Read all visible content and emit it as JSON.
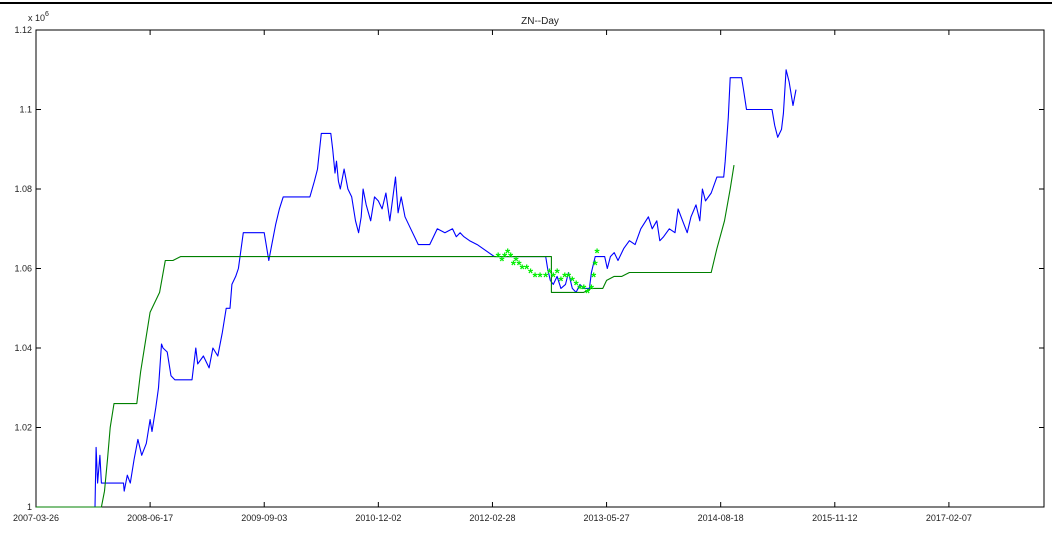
{
  "chart_data": {
    "type": "line",
    "title": "ZN--Day",
    "xlabel": "",
    "ylabel": "",
    "y_exponent_label": "x 10",
    "y_exponent_power": "6",
    "x_tick_labels": [
      "2007-03-26",
      "2008-06-17",
      "2009-09-03",
      "2010-12-02",
      "2012-02-28",
      "2013-05-27",
      "2014-08-18",
      "2015-11-12",
      "2017-02-07"
    ],
    "x_tick_index": [
      0,
      300,
      600,
      900,
      1200,
      1500,
      1800,
      2100,
      2400
    ],
    "xlim": [
      0,
      2650
    ],
    "y_tick_labels": [
      "1",
      "1.02",
      "1.04",
      "1.06",
      "1.08",
      "1.1",
      "1.12"
    ],
    "y_tick_values": [
      1.0,
      1.02,
      1.04,
      1.06,
      1.08,
      1.1,
      1.12
    ],
    "ylim": [
      1.0,
      1.12
    ],
    "grid": false,
    "series": [
      {
        "role": "equity",
        "color": "#0000ff",
        "points": [
          [
            155,
            1.0
          ],
          [
            158,
            1.015
          ],
          [
            162,
            1.006
          ],
          [
            168,
            1.013
          ],
          [
            172,
            1.006
          ],
          [
            230,
            1.006
          ],
          [
            232,
            1.004
          ],
          [
            240,
            1.008
          ],
          [
            248,
            1.006
          ],
          [
            258,
            1.012
          ],
          [
            268,
            1.017
          ],
          [
            278,
            1.013
          ],
          [
            290,
            1.016
          ],
          [
            300,
            1.022
          ],
          [
            305,
            1.019
          ],
          [
            315,
            1.025
          ],
          [
            322,
            1.03
          ],
          [
            330,
            1.041
          ],
          [
            334,
            1.04
          ],
          [
            345,
            1.039
          ],
          [
            355,
            1.033
          ],
          [
            365,
            1.032
          ],
          [
            410,
            1.032
          ],
          [
            420,
            1.04
          ],
          [
            425,
            1.036
          ],
          [
            440,
            1.038
          ],
          [
            455,
            1.035
          ],
          [
            465,
            1.04
          ],
          [
            478,
            1.038
          ],
          [
            490,
            1.044
          ],
          [
            500,
            1.05
          ],
          [
            510,
            1.05
          ],
          [
            515,
            1.056
          ],
          [
            525,
            1.058
          ],
          [
            532,
            1.06
          ],
          [
            545,
            1.069
          ],
          [
            600,
            1.069
          ],
          [
            612,
            1.062
          ],
          [
            620,
            1.066
          ],
          [
            630,
            1.071
          ],
          [
            640,
            1.075
          ],
          [
            650,
            1.078
          ],
          [
            720,
            1.078
          ],
          [
            732,
            1.082
          ],
          [
            740,
            1.085
          ],
          [
            750,
            1.094
          ],
          [
            775,
            1.094
          ],
          [
            780,
            1.09
          ],
          [
            786,
            1.084
          ],
          [
            790,
            1.087
          ],
          [
            795,
            1.082
          ],
          [
            800,
            1.08
          ],
          [
            810,
            1.085
          ],
          [
            820,
            1.08
          ],
          [
            830,
            1.078
          ],
          [
            840,
            1.072
          ],
          [
            848,
            1.069
          ],
          [
            855,
            1.073
          ],
          [
            860,
            1.08
          ],
          [
            868,
            1.076
          ],
          [
            880,
            1.072
          ],
          [
            890,
            1.078
          ],
          [
            900,
            1.077
          ],
          [
            910,
            1.075
          ],
          [
            920,
            1.079
          ],
          [
            930,
            1.072
          ],
          [
            945,
            1.083
          ],
          [
            952,
            1.074
          ],
          [
            960,
            1.078
          ],
          [
            970,
            1.073
          ],
          [
            985,
            1.07
          ],
          [
            1005,
            1.066
          ],
          [
            1035,
            1.066
          ],
          [
            1045,
            1.068
          ],
          [
            1055,
            1.07
          ],
          [
            1075,
            1.069
          ],
          [
            1095,
            1.07
          ],
          [
            1105,
            1.068
          ],
          [
            1115,
            1.069
          ],
          [
            1125,
            1.068
          ],
          [
            1140,
            1.067
          ],
          [
            1160,
            1.066
          ],
          [
            1190,
            1.064
          ],
          [
            1205,
            1.063
          ],
          [
            1340,
            1.063
          ],
          [
            1345,
            1.06
          ],
          [
            1352,
            1.057
          ],
          [
            1360,
            1.056
          ],
          [
            1370,
            1.058
          ],
          [
            1380,
            1.055
          ],
          [
            1392,
            1.056
          ],
          [
            1400,
            1.059
          ],
          [
            1410,
            1.055
          ],
          [
            1420,
            1.054
          ],
          [
            1430,
            1.056
          ],
          [
            1440,
            1.055
          ],
          [
            1455,
            1.055
          ],
          [
            1460,
            1.059
          ],
          [
            1470,
            1.063
          ],
          [
            1495,
            1.063
          ],
          [
            1502,
            1.06
          ],
          [
            1510,
            1.063
          ],
          [
            1520,
            1.064
          ],
          [
            1530,
            1.062
          ],
          [
            1545,
            1.065
          ],
          [
            1560,
            1.067
          ],
          [
            1575,
            1.066
          ],
          [
            1590,
            1.07
          ],
          [
            1610,
            1.073
          ],
          [
            1620,
            1.07
          ],
          [
            1632,
            1.072
          ],
          [
            1640,
            1.067
          ],
          [
            1650,
            1.068
          ],
          [
            1665,
            1.07
          ],
          [
            1680,
            1.069
          ],
          [
            1688,
            1.075
          ],
          [
            1700,
            1.072
          ],
          [
            1712,
            1.069
          ],
          [
            1722,
            1.073
          ],
          [
            1735,
            1.076
          ],
          [
            1745,
            1.072
          ],
          [
            1752,
            1.08
          ],
          [
            1760,
            1.077
          ],
          [
            1775,
            1.079
          ],
          [
            1790,
            1.083
          ],
          [
            1808,
            1.083
          ],
          [
            1812,
            1.087
          ],
          [
            1820,
            1.098
          ],
          [
            1825,
            1.108
          ],
          [
            1855,
            1.108
          ],
          [
            1860,
            1.105
          ],
          [
            1868,
            1.1
          ],
          [
            1935,
            1.1
          ],
          [
            1942,
            1.096
          ],
          [
            1950,
            1.093
          ],
          [
            1960,
            1.095
          ],
          [
            1965,
            1.099
          ],
          [
            1972,
            1.11
          ],
          [
            1980,
            1.107
          ],
          [
            1990,
            1.101
          ],
          [
            1998,
            1.105
          ]
        ]
      },
      {
        "role": "trailing_stop",
        "color": "#008000",
        "points": [
          [
            0,
            1.0
          ],
          [
            172,
            1.0
          ],
          [
            180,
            1.004
          ],
          [
            188,
            1.012
          ],
          [
            195,
            1.02
          ],
          [
            205,
            1.026
          ],
          [
            265,
            1.026
          ],
          [
            275,
            1.034
          ],
          [
            285,
            1.04
          ],
          [
            300,
            1.049
          ],
          [
            325,
            1.054
          ],
          [
            340,
            1.062
          ],
          [
            345,
            1.062
          ],
          [
            360,
            1.062
          ],
          [
            380,
            1.063
          ],
          [
            1355,
            1.063
          ],
          [
            1355,
            1.054
          ],
          [
            1440,
            1.054
          ],
          [
            1460,
            1.055
          ],
          [
            1490,
            1.055
          ],
          [
            1500,
            1.057
          ],
          [
            1520,
            1.058
          ],
          [
            1540,
            1.058
          ],
          [
            1560,
            1.059
          ],
          [
            1620,
            1.059
          ],
          [
            1650,
            1.059
          ],
          [
            1700,
            1.059
          ],
          [
            1745,
            1.059
          ],
          [
            1775,
            1.059
          ],
          [
            1790,
            1.065
          ],
          [
            1810,
            1.072
          ],
          [
            1825,
            1.08
          ],
          [
            1835,
            1.086
          ]
        ]
      },
      {
        "role": "markers",
        "color": "#00ee00",
        "marker": "*",
        "points": [
          [
            1215,
            1.063
          ],
          [
            1225,
            1.062
          ],
          [
            1232,
            1.063
          ],
          [
            1240,
            1.064
          ],
          [
            1248,
            1.063
          ],
          [
            1255,
            1.061
          ],
          [
            1262,
            1.062
          ],
          [
            1270,
            1.061
          ],
          [
            1278,
            1.06
          ],
          [
            1290,
            1.06
          ],
          [
            1300,
            1.059
          ],
          [
            1312,
            1.058
          ],
          [
            1325,
            1.058
          ],
          [
            1340,
            1.058
          ],
          [
            1350,
            1.059
          ],
          [
            1360,
            1.058
          ],
          [
            1370,
            1.059
          ],
          [
            1380,
            1.057
          ],
          [
            1390,
            1.058
          ],
          [
            1400,
            1.058
          ],
          [
            1410,
            1.057
          ],
          [
            1420,
            1.056
          ],
          [
            1430,
            1.055
          ],
          [
            1440,
            1.055
          ],
          [
            1450,
            1.054
          ],
          [
            1460,
            1.055
          ],
          [
            1466,
            1.058
          ],
          [
            1470,
            1.061
          ],
          [
            1475,
            1.064
          ]
        ]
      }
    ]
  }
}
